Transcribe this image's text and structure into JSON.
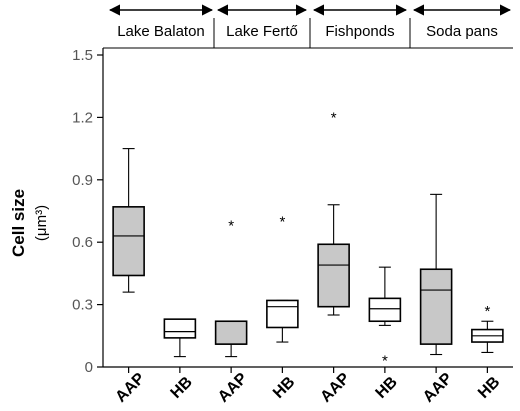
{
  "chart_data": {
    "type": "box",
    "title": "",
    "ylabel": "Cell size",
    "ylabel_unit": "(μm³)",
    "ylim": [
      0,
      1.5
    ],
    "yticks": [
      0,
      0.3,
      0.6,
      0.9,
      1.2,
      1.5
    ],
    "ytick_labels": [
      "0",
      "0.3",
      "0.6",
      "0.9",
      "1.2",
      "1.5"
    ],
    "grid": false,
    "groups": [
      {
        "label": "Lake Balaton",
        "categories": [
          "AAP",
          "HB"
        ]
      },
      {
        "label": "Lake Fertő",
        "categories": [
          "AAP",
          "HB"
        ]
      },
      {
        "label": "Fishponds",
        "categories": [
          "AAP",
          "HB"
        ]
      },
      {
        "label": "Soda pans",
        "categories": [
          "AAP",
          "HB"
        ]
      }
    ],
    "boxes": [
      {
        "category": "AAP",
        "group": "Lake Balaton",
        "fill": "#c8c8c8",
        "min": 0.36,
        "q1": 0.44,
        "median": 0.63,
        "q3": 0.77,
        "max": 1.05,
        "outliers": []
      },
      {
        "category": "HB",
        "group": "Lake Balaton",
        "fill": "#ffffff",
        "min": 0.05,
        "q1": 0.14,
        "median": 0.17,
        "q3": 0.23,
        "max": 0.23,
        "outliers": []
      },
      {
        "category": "AAP",
        "group": "Lake Fertő",
        "fill": "#c8c8c8",
        "min": 0.05,
        "q1": 0.11,
        "median": 0.11,
        "q3": 0.22,
        "max": 0.22,
        "outliers": [
          0.69
        ]
      },
      {
        "category": "HB",
        "group": "Lake Fertő",
        "fill": "#ffffff",
        "min": 0.12,
        "q1": 0.19,
        "median": 0.29,
        "q3": 0.32,
        "max": 0.32,
        "outliers": [
          0.71
        ]
      },
      {
        "category": "AAP",
        "group": "Fishponds",
        "fill": "#c8c8c8",
        "min": 0.25,
        "q1": 0.29,
        "median": 0.49,
        "q3": 0.59,
        "max": 0.78,
        "outliers": [
          1.21
        ]
      },
      {
        "category": "HB",
        "group": "Fishponds",
        "fill": "#ffffff",
        "min": 0.2,
        "q1": 0.22,
        "median": 0.28,
        "q3": 0.33,
        "max": 0.48,
        "outliers": [
          0.04
        ]
      },
      {
        "category": "AAP",
        "group": "Soda pans",
        "fill": "#c8c8c8",
        "min": 0.06,
        "q1": 0.11,
        "median": 0.37,
        "q3": 0.47,
        "max": 0.83,
        "outliers": []
      },
      {
        "category": "HB",
        "group": "Soda pans",
        "fill": "#ffffff",
        "min": 0.07,
        "q1": 0.12,
        "median": 0.15,
        "q3": 0.18,
        "max": 0.22,
        "outliers": [
          0.28
        ]
      }
    ],
    "outlier_marker": "*"
  }
}
